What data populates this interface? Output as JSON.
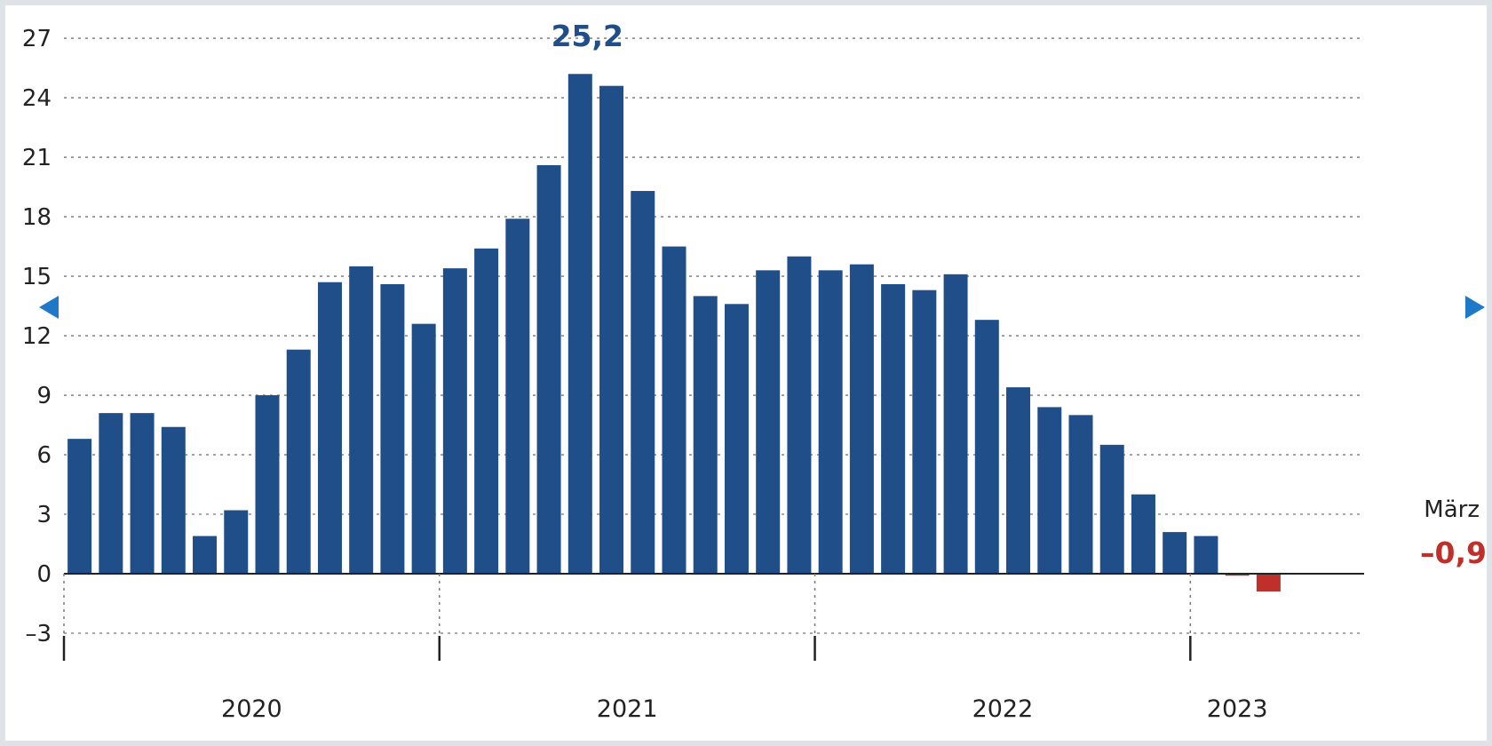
{
  "chart_data": {
    "type": "bar",
    "years": [
      "2020",
      "2021",
      "2022",
      "2023"
    ],
    "y_ticks": [
      "27",
      "24",
      "21",
      "18",
      "15",
      "12",
      "9",
      "6",
      "3",
      "0",
      "–3"
    ],
    "ylim": [
      -3,
      27
    ],
    "grid": true,
    "values": [
      6.8,
      8.1,
      8.1,
      7.4,
      1.9,
      3.2,
      9.0,
      11.3,
      14.7,
      15.5,
      14.6,
      12.6,
      15.4,
      16.4,
      17.9,
      20.6,
      25.2,
      24.6,
      19.3,
      16.5,
      14.0,
      13.6,
      15.3,
      16.0,
      15.3,
      15.6,
      14.6,
      14.3,
      15.1,
      12.8,
      9.4,
      8.4,
      8.0,
      6.5,
      4.0,
      2.1,
      1.9,
      -0.1,
      -0.9
    ],
    "colors": {
      "positive": "#1f4e89",
      "negative": "#c0302b",
      "grid": "#8a8a8a",
      "arrow": "#1f78c8"
    },
    "annotations": {
      "peak_label": "25,2",
      "last_label": "–0,9",
      "last_month": "März"
    }
  }
}
